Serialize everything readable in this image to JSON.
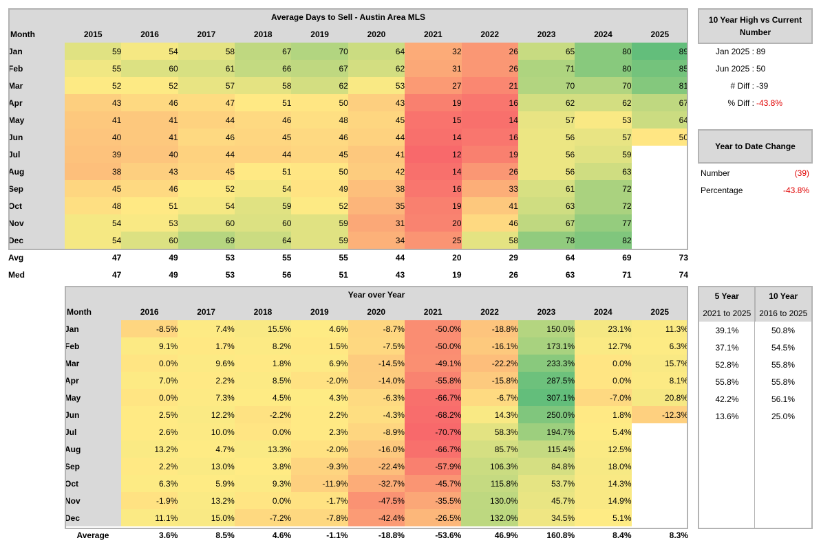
{
  "days": {
    "title": "Average Days to Sell - Austin Area MLS",
    "month_label": "Month",
    "years": [
      "2015",
      "2016",
      "2017",
      "2018",
      "2019",
      "2020",
      "2021",
      "2022",
      "2023",
      "2024",
      "2025"
    ],
    "months": [
      "Jan",
      "Feb",
      "Mar",
      "Apr",
      "May",
      "Jun",
      "Jul",
      "Aug",
      "Sep",
      "Oct",
      "Nov",
      "Dec"
    ],
    "values": [
      [
        59,
        54,
        58,
        67,
        70,
        64,
        32,
        26,
        65,
        80,
        89
      ],
      [
        55,
        60,
        61,
        66,
        67,
        62,
        31,
        26,
        71,
        80,
        85
      ],
      [
        52,
        52,
        57,
        58,
        62,
        53,
        27,
        21,
        70,
        70,
        81
      ],
      [
        43,
        46,
        47,
        51,
        50,
        43,
        19,
        16,
        62,
        62,
        67
      ],
      [
        41,
        41,
        44,
        46,
        48,
        45,
        15,
        14,
        57,
        53,
        64
      ],
      [
        40,
        41,
        46,
        45,
        46,
        44,
        14,
        16,
        56,
        57,
        50
      ],
      [
        39,
        40,
        44,
        44,
        45,
        41,
        12,
        19,
        56,
        59,
        null
      ],
      [
        38,
        43,
        45,
        51,
        50,
        42,
        14,
        26,
        56,
        63,
        null
      ],
      [
        45,
        46,
        52,
        54,
        49,
        38,
        16,
        33,
        61,
        72,
        null
      ],
      [
        48,
        51,
        54,
        59,
        52,
        35,
        19,
        41,
        63,
        72,
        null
      ],
      [
        54,
        53,
        60,
        60,
        59,
        31,
        20,
        46,
        67,
        77,
        null
      ],
      [
        54,
        60,
        69,
        64,
        59,
        34,
        25,
        58,
        78,
        82,
        null
      ]
    ],
    "avg_label": "Avg",
    "avg": [
      "47",
      "49",
      "53",
      "55",
      "55",
      "44",
      "20",
      "29",
      "64",
      "69",
      "73"
    ],
    "med_label": "Med",
    "med": [
      "47",
      "49",
      "53",
      "56",
      "51",
      "43",
      "19",
      "26",
      "63",
      "71",
      "74"
    ]
  },
  "yoy": {
    "title": "Year over Year",
    "month_label": "Month",
    "years": [
      "2016",
      "2017",
      "2018",
      "2019",
      "2020",
      "2021",
      "2022",
      "2023",
      "2024",
      "2025"
    ],
    "values": [
      [
        "-8.5%",
        "7.4%",
        "15.5%",
        "4.6%",
        "-8.7%",
        "-50.0%",
        "-18.8%",
        "150.0%",
        "23.1%",
        "11.3%"
      ],
      [
        "9.1%",
        "1.7%",
        "8.2%",
        "1.5%",
        "-7.5%",
        "-50.0%",
        "-16.1%",
        "173.1%",
        "12.7%",
        "6.3%"
      ],
      [
        "0.0%",
        "9.6%",
        "1.8%",
        "6.9%",
        "-14.5%",
        "-49.1%",
        "-22.2%",
        "233.3%",
        "0.0%",
        "15.7%"
      ],
      [
        "7.0%",
        "2.2%",
        "8.5%",
        "-2.0%",
        "-14.0%",
        "-55.8%",
        "-15.8%",
        "287.5%",
        "0.0%",
        "8.1%"
      ],
      [
        "0.0%",
        "7.3%",
        "4.5%",
        "4.3%",
        "-6.3%",
        "-66.7%",
        "-6.7%",
        "307.1%",
        "-7.0%",
        "20.8%"
      ],
      [
        "2.5%",
        "12.2%",
        "-2.2%",
        "2.2%",
        "-4.3%",
        "-68.2%",
        "14.3%",
        "250.0%",
        "1.8%",
        "-12.3%"
      ],
      [
        "2.6%",
        "10.0%",
        "0.0%",
        "2.3%",
        "-8.9%",
        "-70.7%",
        "58.3%",
        "194.7%",
        "5.4%",
        ""
      ],
      [
        "13.2%",
        "4.7%",
        "13.3%",
        "-2.0%",
        "-16.0%",
        "-66.7%",
        "85.7%",
        "115.4%",
        "12.5%",
        ""
      ],
      [
        "2.2%",
        "13.0%",
        "3.8%",
        "-9.3%",
        "-22.4%",
        "-57.9%",
        "106.3%",
        "84.8%",
        "18.0%",
        ""
      ],
      [
        "6.3%",
        "5.9%",
        "9.3%",
        "-11.9%",
        "-32.7%",
        "-45.7%",
        "115.8%",
        "53.7%",
        "14.3%",
        ""
      ],
      [
        "-1.9%",
        "13.2%",
        "0.0%",
        "-1.7%",
        "-47.5%",
        "-35.5%",
        "130.0%",
        "45.7%",
        "14.9%",
        ""
      ],
      [
        "11.1%",
        "15.0%",
        "-7.2%",
        "-7.8%",
        "-42.4%",
        "-26.5%",
        "132.0%",
        "34.5%",
        "5.1%",
        ""
      ]
    ],
    "avg_label": "Average",
    "avg": [
      "3.6%",
      "8.5%",
      "4.6%",
      "-1.1%",
      "-18.8%",
      "-53.6%",
      "46.9%",
      "160.8%",
      "8.4%",
      "8.3%"
    ]
  },
  "high_panel": {
    "title": "10 Year High vs Current Number",
    "rows": [
      {
        "label": "Jan 2025 :",
        "value": "89",
        "red": false
      },
      {
        "label": "Jun 2025 :",
        "value": "50",
        "red": false
      },
      {
        "label": "# Diff :",
        "value": "-39",
        "red": false
      },
      {
        "label": "% Diff :",
        "value": "-43.8%",
        "red": true
      }
    ]
  },
  "ytd_panel": {
    "title": "Year to Date Change",
    "number_label": "Number",
    "number_value": "(39)",
    "percent_label": "Percentage",
    "percent_value": "-43.8%"
  },
  "trend_panel": {
    "five_title": "5 Year",
    "five_sub": "2021 to 2025",
    "ten_title": "10 Year",
    "ten_sub": "2016 to 2025",
    "five": [
      "39.1%",
      "37.1%",
      "52.8%",
      "55.8%",
      "42.2%",
      "13.6%"
    ],
    "ten": [
      "50.8%",
      "54.5%",
      "55.8%",
      "55.8%",
      "56.1%",
      "25.0%"
    ]
  },
  "colors": {
    "low": "#f8696b",
    "mid": "#ffeb84",
    "high": "#63be7b",
    "header_gray": "#d9d9d9",
    "border_gray": "#b3b3b3",
    "negative_red": "#e00000"
  }
}
